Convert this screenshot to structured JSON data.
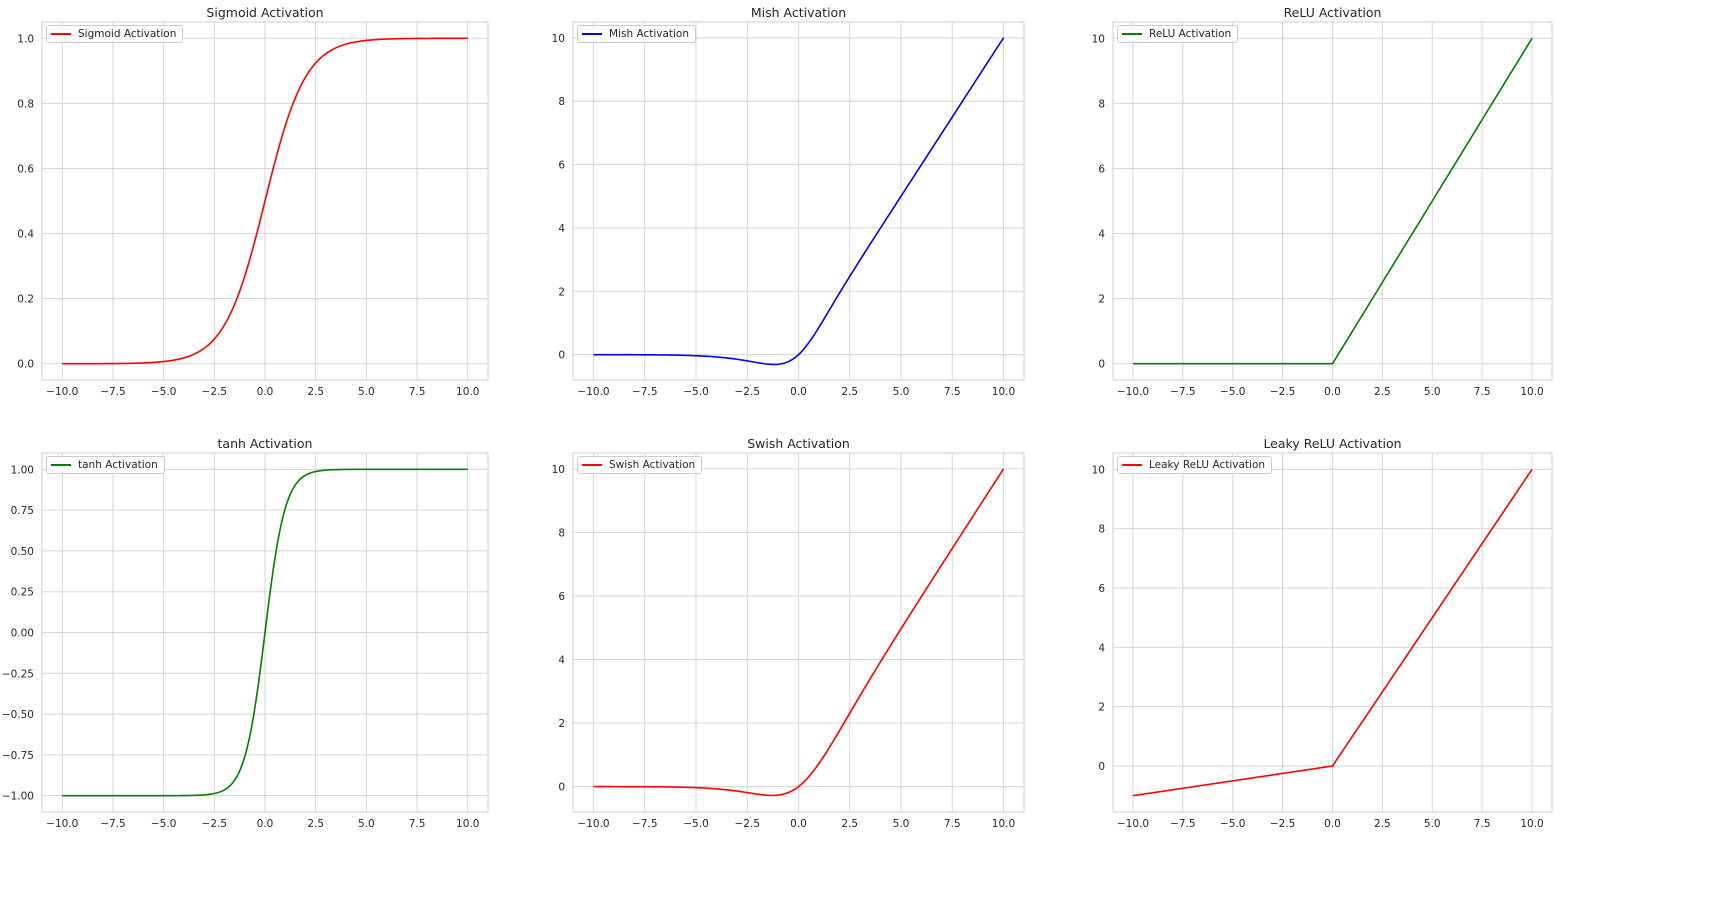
{
  "chart_data": [
    {
      "type": "line",
      "title": "Sigmoid Activation",
      "xlabel": "",
      "ylabel": "",
      "legend": [
        "Sigmoid Activation"
      ],
      "legend_position": "upper left",
      "grid": true,
      "color": "#ff0000",
      "function": "sigmoid",
      "xlim": [
        -11.0,
        11.0
      ],
      "ylim": [
        -0.05,
        1.05
      ],
      "xticks": [
        "−10.0",
        "−7.5",
        "−5.0",
        "−2.5",
        "0.0",
        "2.5",
        "5.0",
        "7.5",
        "10.0"
      ],
      "yticks": [
        "0.0",
        "0.2",
        "0.4",
        "0.6",
        "0.8",
        "1.0"
      ],
      "ytick_values": [
        0,
        0.2,
        0.4,
        0.6,
        0.8,
        1.0
      ],
      "x": [
        -10,
        -7.5,
        -5,
        -2.5,
        0,
        2.5,
        5,
        7.5,
        10
      ],
      "y": [
        4.54e-05,
        0.00055,
        0.0067,
        0.0759,
        0.5,
        0.9241,
        0.9933,
        0.99945,
        0.99995
      ]
    },
    {
      "type": "line",
      "title": "Mish Activation",
      "xlabel": "",
      "ylabel": "",
      "legend": [
        "Mish Activation"
      ],
      "legend_position": "upper left",
      "grid": true,
      "color": "#0000ff",
      "function": "mish",
      "xlim": [
        -11.0,
        11.0
      ],
      "ylim": [
        -0.8,
        10.5
      ],
      "xticks": [
        "−10.0",
        "−7.5",
        "−5.0",
        "−2.5",
        "0.0",
        "2.5",
        "5.0",
        "7.5",
        "10.0"
      ],
      "yticks": [
        "0",
        "2",
        "4",
        "6",
        "8",
        "10"
      ],
      "ytick_values": [
        0,
        2,
        4,
        6,
        8,
        10
      ],
      "x": [
        -10,
        -7.5,
        -5,
        -2.5,
        -1.2,
        0,
        2.5,
        5,
        7.5,
        10
      ],
      "y": [
        -0.0005,
        -0.004,
        -0.034,
        -0.19,
        -0.31,
        0,
        2.47,
        5.0,
        7.5,
        10.0
      ]
    },
    {
      "type": "line",
      "title": "ReLU Activation",
      "xlabel": "",
      "ylabel": "",
      "legend": [
        "ReLU Activation"
      ],
      "legend_position": "upper left",
      "grid": true,
      "color": "#008000",
      "function": "relu",
      "xlim": [
        -11.0,
        11.0
      ],
      "ylim": [
        -0.5,
        10.5
      ],
      "xticks": [
        "−10.0",
        "−7.5",
        "−5.0",
        "−2.5",
        "0.0",
        "2.5",
        "5.0",
        "7.5",
        "10.0"
      ],
      "yticks": [
        "0",
        "2",
        "4",
        "6",
        "8",
        "10"
      ],
      "ytick_values": [
        0,
        2,
        4,
        6,
        8,
        10
      ],
      "x": [
        -10,
        -7.5,
        -5,
        -2.5,
        0,
        2.5,
        5,
        7.5,
        10
      ],
      "y": [
        0,
        0,
        0,
        0,
        0,
        2.5,
        5,
        7.5,
        10
      ]
    },
    {
      "type": "line",
      "title": "tanh Activation",
      "xlabel": "",
      "ylabel": "",
      "legend": [
        "tanh Activation"
      ],
      "legend_position": "upper left",
      "grid": true,
      "color": "#008000",
      "function": "tanh",
      "xlim": [
        -11.0,
        11.0
      ],
      "ylim": [
        -1.1,
        1.1
      ],
      "xticks": [
        "−10.0",
        "−7.5",
        "−5.0",
        "−2.5",
        "0.0",
        "2.5",
        "5.0",
        "7.5",
        "10.0"
      ],
      "yticks": [
        "−1.00",
        "−0.75",
        "−0.50",
        "−0.25",
        "0.00",
        "0.25",
        "0.50",
        "0.75",
        "1.00"
      ],
      "ytick_values": [
        -1,
        -0.75,
        -0.5,
        -0.25,
        0,
        0.25,
        0.5,
        0.75,
        1.0
      ],
      "x": [
        -10,
        -7.5,
        -5,
        -2.5,
        0,
        2.5,
        5,
        7.5,
        10
      ],
      "y": [
        -1.0,
        -1.0,
        -0.9999,
        -0.9866,
        0,
        0.9866,
        0.9999,
        1.0,
        1.0
      ]
    },
    {
      "type": "line",
      "title": "Swish Activation",
      "xlabel": "",
      "ylabel": "",
      "legend": [
        "Swish Activation"
      ],
      "legend_position": "upper left",
      "grid": true,
      "color": "#ff0000",
      "function": "swish",
      "xlim": [
        -11.0,
        11.0
      ],
      "ylim": [
        -0.8,
        10.5
      ],
      "xticks": [
        "−10.0",
        "−7.5",
        "−5.0",
        "−2.5",
        "0.0",
        "2.5",
        "5.0",
        "7.5",
        "10.0"
      ],
      "yticks": [
        "0",
        "2",
        "4",
        "6",
        "8",
        "10"
      ],
      "ytick_values": [
        0,
        2,
        4,
        6,
        8,
        10
      ],
      "x": [
        -10,
        -7.5,
        -5,
        -2.5,
        -1.28,
        0,
        2.5,
        5,
        7.5,
        10
      ],
      "y": [
        -0.0005,
        -0.004,
        -0.033,
        -0.19,
        -0.28,
        0,
        2.31,
        4.97,
        7.5,
        10.0
      ]
    },
    {
      "type": "line",
      "title": "Leaky ReLU Activation",
      "xlabel": "",
      "ylabel": "",
      "legend": [
        "Leaky ReLU Activation"
      ],
      "legend_position": "upper left",
      "grid": true,
      "color": "#ff0000",
      "function": "leaky_relu",
      "alpha": 0.1,
      "xlim": [
        -11.0,
        11.0
      ],
      "ylim": [
        -1.55,
        10.55
      ],
      "xticks": [
        "−10.0",
        "−7.5",
        "−5.0",
        "−2.5",
        "0.0",
        "2.5",
        "5.0",
        "7.5",
        "10.0"
      ],
      "yticks": [
        "0",
        "2",
        "4",
        "6",
        "8",
        "10"
      ],
      "ytick_values": [
        0,
        2,
        4,
        6,
        8,
        10
      ],
      "x": [
        -10,
        -7.5,
        -5,
        -2.5,
        0,
        2.5,
        5,
        7.5,
        10
      ],
      "y": [
        -1.0,
        -0.75,
        -0.5,
        -0.25,
        0,
        2.5,
        5,
        7.5,
        10
      ]
    }
  ],
  "panels": [
    {
      "title": "Sigmoid Activation",
      "legend": "Sigmoid Activation"
    },
    {
      "title": "Mish Activation",
      "legend": "Mish Activation"
    },
    {
      "title": "ReLU Activation",
      "legend": "ReLU Activation"
    },
    {
      "title": "tanh Activation",
      "legend": "tanh Activation"
    },
    {
      "title": "Swish Activation",
      "legend": "Swish Activation"
    },
    {
      "title": "Leaky ReLU Activation",
      "legend": "Leaky ReLU Activation"
    }
  ],
  "style": {
    "grid_color": "#d5d5d5",
    "spine_color": "#cccccc",
    "tick_color": "#262626"
  }
}
